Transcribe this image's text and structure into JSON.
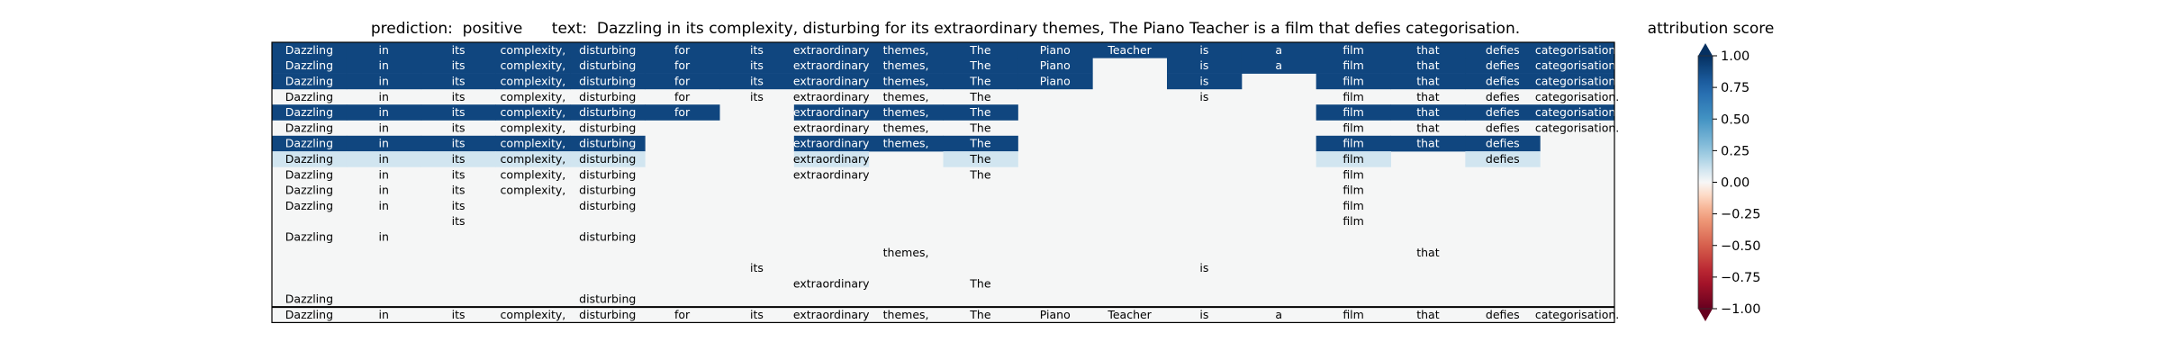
{
  "title": "prediction:  positive      text:  Dazzling in its complexity, disturbing for its extraordinary themes, The Piano Teacher is a film that defies categorisation.",
  "colorbar": {
    "title": "attribution score",
    "ticks": [
      "1.00",
      "0.75",
      "0.50",
      "0.25",
      "0.00",
      "−0.25",
      "−0.50",
      "−0.75",
      "−1.00"
    ],
    "tick_values": [
      1.0,
      0.75,
      0.5,
      0.25,
      0.0,
      -0.25,
      -0.5,
      -0.75,
      -1.0
    ],
    "colors": {
      "positive": "#053061",
      "light_positive": "#d1e5f0",
      "zero": "#f7f7f7",
      "light_negative": "#fddbc7",
      "negative": "#67001f"
    }
  },
  "chart_data": {
    "type": "heatmap",
    "title": "prediction:  positive      text:  Dazzling in its complexity, disturbing for its extraordinary themes, The Piano Teacher is a film that defies categorisation.",
    "columns": [
      "Dazzling",
      "in",
      "its",
      "complexity,",
      "disturbing",
      "for",
      "its",
      "extraordinary",
      "themes,",
      "The",
      "Piano",
      "Teacher",
      "is",
      "a",
      "film",
      "that",
      "defies",
      "categorisation."
    ],
    "rows": [
      {
        "tokens": [
          1,
          1,
          1,
          1,
          1,
          1,
          1,
          1,
          1,
          1,
          1,
          1,
          1,
          1,
          1,
          1,
          1,
          1
        ],
        "attr": [
          0.9,
          0.9,
          0.9,
          0.9,
          0.9,
          0.9,
          0.9,
          0.9,
          0.9,
          0.9,
          0.9,
          0.9,
          0.9,
          0.9,
          0.9,
          0.9,
          0.9,
          0.9
        ]
      },
      {
        "tokens": [
          1,
          1,
          1,
          1,
          1,
          1,
          1,
          1,
          1,
          1,
          1,
          0,
          1,
          1,
          1,
          1,
          1,
          1
        ],
        "attr": [
          0.9,
          0.9,
          0.9,
          0.9,
          0.9,
          0.9,
          0.9,
          0.9,
          0.9,
          0.9,
          0.9,
          0,
          0.9,
          0.9,
          0.9,
          0.9,
          0.9,
          0.9
        ]
      },
      {
        "tokens": [
          1,
          1,
          1,
          1,
          1,
          1,
          1,
          1,
          1,
          1,
          1,
          0,
          1,
          0,
          1,
          1,
          1,
          1
        ],
        "attr": [
          0.9,
          0.9,
          0.9,
          0.9,
          0.9,
          0.9,
          0.9,
          0.9,
          0.9,
          0.9,
          0.9,
          0,
          0.9,
          0,
          0.9,
          0.9,
          0.9,
          0.9
        ]
      },
      {
        "tokens": [
          1,
          1,
          1,
          1,
          1,
          1,
          1,
          1,
          1,
          1,
          0,
          0,
          1,
          0,
          1,
          1,
          1,
          1
        ],
        "attr": [
          0,
          0,
          0,
          0,
          0,
          0,
          0,
          0,
          0,
          0,
          0,
          0,
          0,
          0,
          0,
          0,
          0,
          0
        ]
      },
      {
        "tokens": [
          1,
          1,
          1,
          1,
          1,
          1,
          0,
          1,
          1,
          1,
          0,
          0,
          0,
          0,
          1,
          1,
          1,
          1
        ],
        "attr": [
          0.9,
          0.9,
          0.9,
          0.9,
          0.9,
          0.9,
          0,
          0.9,
          0.9,
          0.9,
          0,
          0,
          0,
          0,
          0.9,
          0.9,
          0.9,
          0.9
        ]
      },
      {
        "tokens": [
          1,
          1,
          1,
          1,
          1,
          0,
          0,
          1,
          1,
          1,
          0,
          0,
          0,
          0,
          1,
          1,
          1,
          1
        ],
        "attr": [
          0,
          0,
          0,
          0,
          0,
          0,
          0,
          0,
          0,
          0,
          0,
          0,
          0,
          0,
          0,
          0,
          0,
          0
        ]
      },
      {
        "tokens": [
          1,
          1,
          1,
          1,
          1,
          0,
          0,
          1,
          1,
          1,
          0,
          0,
          0,
          0,
          1,
          1,
          1,
          0
        ],
        "attr": [
          0.9,
          0.9,
          0.9,
          0.9,
          0.9,
          0,
          0,
          0.9,
          0.9,
          0.9,
          0,
          0,
          0,
          0,
          0.9,
          0.9,
          0.9,
          0
        ]
      },
      {
        "tokens": [
          1,
          1,
          1,
          1,
          1,
          0,
          0,
          1,
          0,
          1,
          0,
          0,
          0,
          0,
          1,
          0,
          1,
          0
        ],
        "attr": [
          0.1,
          0.1,
          0.1,
          0.1,
          0.1,
          0,
          0,
          0.1,
          0.1,
          0.1,
          0,
          0,
          0,
          0,
          0.1,
          0,
          0.1,
          0
        ]
      },
      {
        "tokens": [
          1,
          1,
          1,
          1,
          1,
          0,
          0,
          1,
          0,
          1,
          0,
          0,
          0,
          0,
          1,
          0,
          0,
          0
        ],
        "attr": [
          0,
          0,
          0,
          0,
          0,
          0,
          0,
          0,
          0,
          0,
          0,
          0,
          0,
          0,
          0,
          0,
          0,
          0
        ]
      },
      {
        "tokens": [
          1,
          1,
          1,
          1,
          1,
          0,
          0,
          0,
          0,
          0,
          0,
          0,
          0,
          0,
          1,
          0,
          0,
          0
        ],
        "attr": [
          0,
          0,
          0,
          0,
          0,
          0,
          0,
          0,
          0,
          0,
          0,
          0,
          0,
          0,
          0,
          0,
          0,
          0
        ]
      },
      {
        "tokens": [
          1,
          1,
          1,
          0,
          1,
          0,
          0,
          0,
          0,
          0,
          0,
          0,
          0,
          0,
          1,
          0,
          0,
          0
        ],
        "attr": [
          0,
          0,
          0,
          0,
          0,
          0,
          0,
          0,
          0,
          0,
          0,
          0,
          0,
          0,
          0,
          0,
          0,
          0
        ]
      },
      {
        "tokens": [
          0,
          0,
          1,
          0,
          0,
          0,
          0,
          0,
          0,
          0,
          0,
          0,
          0,
          0,
          1,
          0,
          0,
          0
        ],
        "attr": [
          0,
          0,
          0,
          0,
          0,
          0,
          0,
          0,
          0,
          0,
          0,
          0,
          0,
          0,
          0,
          0,
          0,
          0
        ]
      },
      {
        "tokens": [
          1,
          1,
          0,
          0,
          1,
          0,
          0,
          0,
          0,
          0,
          0,
          0,
          0,
          0,
          0,
          0,
          0,
          0
        ],
        "attr": [
          0,
          0,
          0,
          0,
          0,
          0,
          0,
          0,
          0,
          0,
          0,
          0,
          0,
          0,
          0,
          0,
          0,
          0
        ]
      },
      {
        "tokens": [
          0,
          0,
          0,
          0,
          0,
          0,
          0,
          0,
          1,
          0,
          0,
          0,
          0,
          0,
          0,
          1,
          0,
          0
        ],
        "attr": [
          0,
          0,
          0,
          0,
          0,
          0,
          0,
          0,
          0,
          0,
          0,
          0,
          0,
          0,
          0,
          0,
          0,
          0
        ]
      },
      {
        "tokens": [
          0,
          0,
          0,
          0,
          0,
          0,
          1,
          0,
          0,
          0,
          0,
          0,
          1,
          0,
          0,
          0,
          0,
          0
        ],
        "attr": [
          0,
          0,
          0,
          0,
          0,
          0,
          0,
          0,
          0,
          0,
          0,
          0,
          0,
          0,
          0,
          0,
          0,
          0
        ]
      },
      {
        "tokens": [
          0,
          0,
          0,
          0,
          0,
          0,
          0,
          1,
          0,
          1,
          0,
          0,
          0,
          0,
          0,
          0,
          0,
          0
        ],
        "attr": [
          0,
          0,
          0,
          0,
          0,
          0,
          0,
          0,
          0,
          0,
          0,
          0,
          0,
          0,
          0,
          0,
          0,
          0
        ]
      },
      {
        "tokens": [
          1,
          0,
          0,
          0,
          1,
          0,
          0,
          0,
          0,
          0,
          0,
          0,
          0,
          0,
          0,
          0,
          0,
          0
        ],
        "attr": [
          0,
          0,
          0,
          0,
          0,
          0,
          0,
          0,
          0,
          0,
          0,
          0,
          0,
          0,
          0,
          0,
          0,
          0
        ]
      },
      {
        "tokens": [
          1,
          1,
          1,
          1,
          1,
          1,
          1,
          1,
          1,
          1,
          1,
          1,
          1,
          1,
          1,
          1,
          1,
          1
        ],
        "attr": [
          0,
          0,
          0,
          0,
          0,
          0,
          0,
          0,
          0,
          0,
          0,
          0,
          0,
          0,
          0,
          0,
          0,
          0
        ]
      }
    ],
    "color_range": [
      -1,
      1
    ]
  }
}
